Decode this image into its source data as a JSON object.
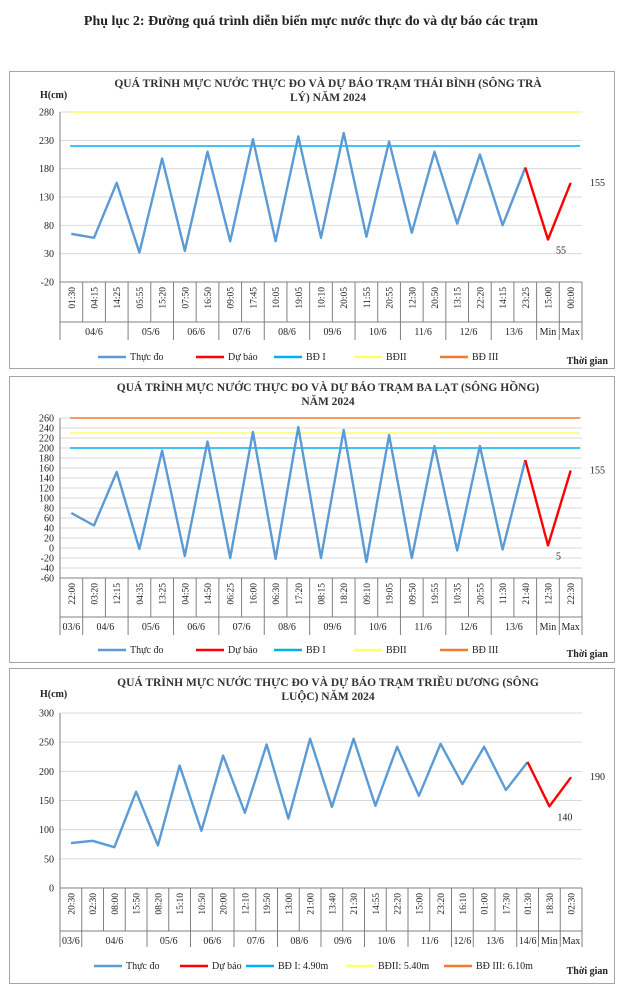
{
  "page_title": "Phụ lục 2: Đường quá trình diễn biến mực nước thực đo và dự báo các trạm",
  "colors": {
    "observed": "#5b9bd5",
    "forecast": "#ff0000",
    "bd1": "#00b0f0",
    "bd2": "#ffff66",
    "bd3": "#ed7d31",
    "grid": "#d9d9d9",
    "axis": "#808080"
  },
  "chart_data": [
    {
      "type": "line",
      "title_lines": [
        "QUÁ TRÌNH MỰC NƯỚC THỰC ĐO VÀ DỰ BÁO TRẠM THÁI BÌNH (SÔNG TRÀ",
        "LÝ) NĂM 2024"
      ],
      "ylabel": "H(cm)",
      "xlabel": "Thời gian",
      "ylim": [
        -20,
        280
      ],
      "yticks": [
        -20,
        30,
        80,
        130,
        180,
        230,
        280
      ],
      "times": [
        "01:30",
        "04:15",
        "14:25",
        "05:55",
        "15:20",
        "07:50",
        "16:50",
        "09:05",
        "17:45",
        "10:05",
        "19:05",
        "10:10",
        "20:05",
        "11:55",
        "20:55",
        "12:30",
        "20:50",
        "13:15",
        "22:20",
        "14:15",
        "23:25",
        "15:00",
        "00:00"
      ],
      "observed": [
        65,
        58,
        155,
        32,
        198,
        35,
        210,
        52,
        232,
        52,
        237,
        58,
        243,
        60,
        228,
        67,
        210,
        83,
        205,
        80,
        182
      ],
      "forecast": [
        182,
        55,
        155
      ],
      "groups": [
        {
          "label": "04/6",
          "span": 3
        },
        {
          "label": "05/6",
          "span": 2
        },
        {
          "label": "06/6",
          "span": 2
        },
        {
          "label": "07/6",
          "span": 2
        },
        {
          "label": "08/6",
          "span": 2
        },
        {
          "label": "09/6",
          "span": 2
        },
        {
          "label": "10/6",
          "span": 2
        },
        {
          "label": "11/6",
          "span": 2
        },
        {
          "label": "12/6",
          "span": 2
        },
        {
          "label": "13/6",
          "span": 2
        },
        {
          "label": "Min",
          "span": 1
        },
        {
          "label": "Max",
          "span": 1
        }
      ],
      "thresholds": {
        "bd1": 220,
        "bd2": 280,
        "bd3": null
      },
      "forecast_labels": [
        {
          "value": "155",
          "at": "max"
        },
        {
          "value": "55",
          "at": "min"
        }
      ],
      "legend": [
        "Thực đo",
        "Dự báo",
        "BĐ I",
        "BĐII",
        "BĐ III"
      ]
    },
    {
      "type": "line",
      "title_lines": [
        "QUÁ TRÌNH MỰC NƯỚC THỰC ĐO VÀ DỰ BÁO TRẠM BA LẠT (SÔNG HỒNG)",
        "NĂM 2024"
      ],
      "ylabel": "",
      "xlabel": "Thời gian",
      "ylim": [
        -60,
        260
      ],
      "yticks": [
        -60,
        -40,
        -20,
        0,
        20,
        40,
        60,
        80,
        100,
        120,
        140,
        160,
        180,
        200,
        220,
        240,
        260
      ],
      "times": [
        "22:00",
        "03:20",
        "12:15",
        "04:35",
        "13:25",
        "04:50",
        "14:50",
        "06:25",
        "16:00",
        "06:30",
        "17:20",
        "08:15",
        "18:20",
        "09:10",
        "19:05",
        "09:50",
        "19:55",
        "10:35",
        "20:55",
        "11:30",
        "21:40",
        "12:30",
        "22:30"
      ],
      "observed": [
        70,
        45,
        152,
        -2,
        195,
        -16,
        213,
        -20,
        232,
        -22,
        242,
        -20,
        236,
        -28,
        226,
        -20,
        204,
        -5,
        204,
        -3,
        176
      ],
      "forecast": [
        176,
        5,
        155
      ],
      "groups": [
        {
          "label": "03/6",
          "span": 1
        },
        {
          "label": "04/6",
          "span": 2
        },
        {
          "label": "05/6",
          "span": 2
        },
        {
          "label": "06/6",
          "span": 2
        },
        {
          "label": "07/6",
          "span": 2
        },
        {
          "label": "08/6",
          "span": 2
        },
        {
          "label": "09/6",
          "span": 2
        },
        {
          "label": "10/6",
          "span": 2
        },
        {
          "label": "11/6",
          "span": 2
        },
        {
          "label": "12/6",
          "span": 2
        },
        {
          "label": "13/6",
          "span": 2
        },
        {
          "label": "Min",
          "span": 1
        },
        {
          "label": "Max",
          "span": 1
        }
      ],
      "thresholds": {
        "bd1": 200,
        "bd2": 230,
        "bd3": 260
      },
      "forecast_labels": [
        {
          "value": "155",
          "at": "max"
        },
        {
          "value": "5",
          "at": "min"
        }
      ],
      "legend": [
        "Thực đo",
        "Dự báo",
        "BĐ I",
        "BĐII",
        "BĐ III"
      ]
    },
    {
      "type": "line",
      "title_lines": [
        "QUÁ TRÌNH MỰC NƯỚC THỰC ĐO VÀ DỰ BÁO TRẠM TRIỀU DƯƠNG (SÔNG",
        "LUỘC) NĂM 2024"
      ],
      "ylabel": "H(cm)",
      "xlabel": "Thời gian",
      "ylim": [
        0,
        300
      ],
      "yticks": [
        0,
        50,
        100,
        150,
        200,
        250,
        300
      ],
      "times": [
        "20:30",
        "02:30",
        "08:00",
        "15:50",
        "08:20",
        "15:10",
        "10:50",
        "20:00",
        "12:10",
        "19:50",
        "13:00",
        "21:00",
        "13:40",
        "21:30",
        "14:55",
        "22:20",
        "15:00",
        "23:20",
        "16:10",
        "01:00",
        "17:30",
        "01:30",
        "18:30",
        "02:30"
      ],
      "observed": [
        77,
        81,
        70,
        165,
        73,
        210,
        98,
        227,
        129,
        246,
        119,
        256,
        139,
        256,
        141,
        242,
        158,
        247,
        178,
        242,
        168,
        216
      ],
      "forecast": [
        216,
        140,
        190
      ],
      "groups": [
        {
          "label": "03/6",
          "span": 1
        },
        {
          "label": "04/6",
          "span": 3
        },
        {
          "label": "05/6",
          "span": 2
        },
        {
          "label": "06/6",
          "span": 2
        },
        {
          "label": "07/6",
          "span": 2
        },
        {
          "label": "08/6",
          "span": 2
        },
        {
          "label": "09/6",
          "span": 2
        },
        {
          "label": "10/6",
          "span": 2
        },
        {
          "label": "11/6",
          "span": 2
        },
        {
          "label": "12/6",
          "span": 1
        },
        {
          "label": "13/6",
          "span": 2
        },
        {
          "label": "14/6",
          "span": 1
        },
        {
          "label": "Min",
          "span": 1
        },
        {
          "label": "Max",
          "span": 1
        }
      ],
      "thresholds": {
        "bd1": null,
        "bd2": null,
        "bd3": null
      },
      "forecast_labels": [
        {
          "value": "190",
          "at": "max"
        },
        {
          "value": "140",
          "at": "min"
        }
      ],
      "legend": [
        "Thực đo",
        "Dự báo",
        "BĐ I: 4.90m",
        "BĐII: 5.40m",
        "BĐ III: 6.10m"
      ]
    }
  ]
}
